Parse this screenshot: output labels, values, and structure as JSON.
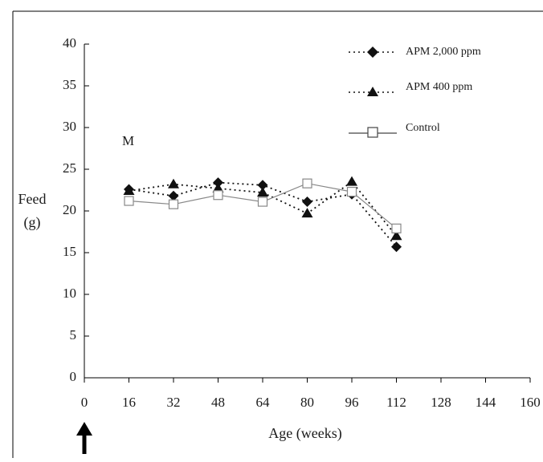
{
  "chart_data": {
    "type": "line",
    "panel_label": "M",
    "xlabel": "Age (weeks)",
    "ylabel_line1": "Feed",
    "ylabel_line2": "(g)",
    "xlim": [
      0,
      160
    ],
    "ylim": [
      0,
      40
    ],
    "x_ticks": [
      0,
      16,
      32,
      48,
      64,
      80,
      96,
      112,
      128,
      144,
      160
    ],
    "y_ticks": [
      0,
      5,
      10,
      15,
      20,
      25,
      30,
      35,
      40
    ],
    "legend_position": "top-right",
    "grid": false,
    "start_marker": "up-arrow-at-x-0",
    "series": [
      {
        "name": "APM 2,000 ppm",
        "marker": "diamond-filled",
        "line": "dotted",
        "color": "#111111",
        "x": [
          16,
          32,
          48,
          64,
          80,
          96,
          112
        ],
        "y": [
          22.6,
          21.8,
          23.4,
          23.1,
          21.1,
          22.0,
          15.7
        ]
      },
      {
        "name": "APM 400 ppm",
        "marker": "triangle-filled",
        "line": "dotted",
        "color": "#111111",
        "x": [
          16,
          32,
          48,
          64,
          80,
          96,
          112
        ],
        "y": [
          22.4,
          23.2,
          22.7,
          22.2,
          19.7,
          23.5,
          17.0
        ]
      },
      {
        "name": "Control",
        "marker": "square-open",
        "line": "solid",
        "color": "#888888",
        "x": [
          16,
          32,
          48,
          64,
          80,
          96,
          112
        ],
        "y": [
          21.2,
          20.8,
          21.9,
          21.1,
          23.3,
          22.3,
          17.9
        ]
      }
    ]
  }
}
